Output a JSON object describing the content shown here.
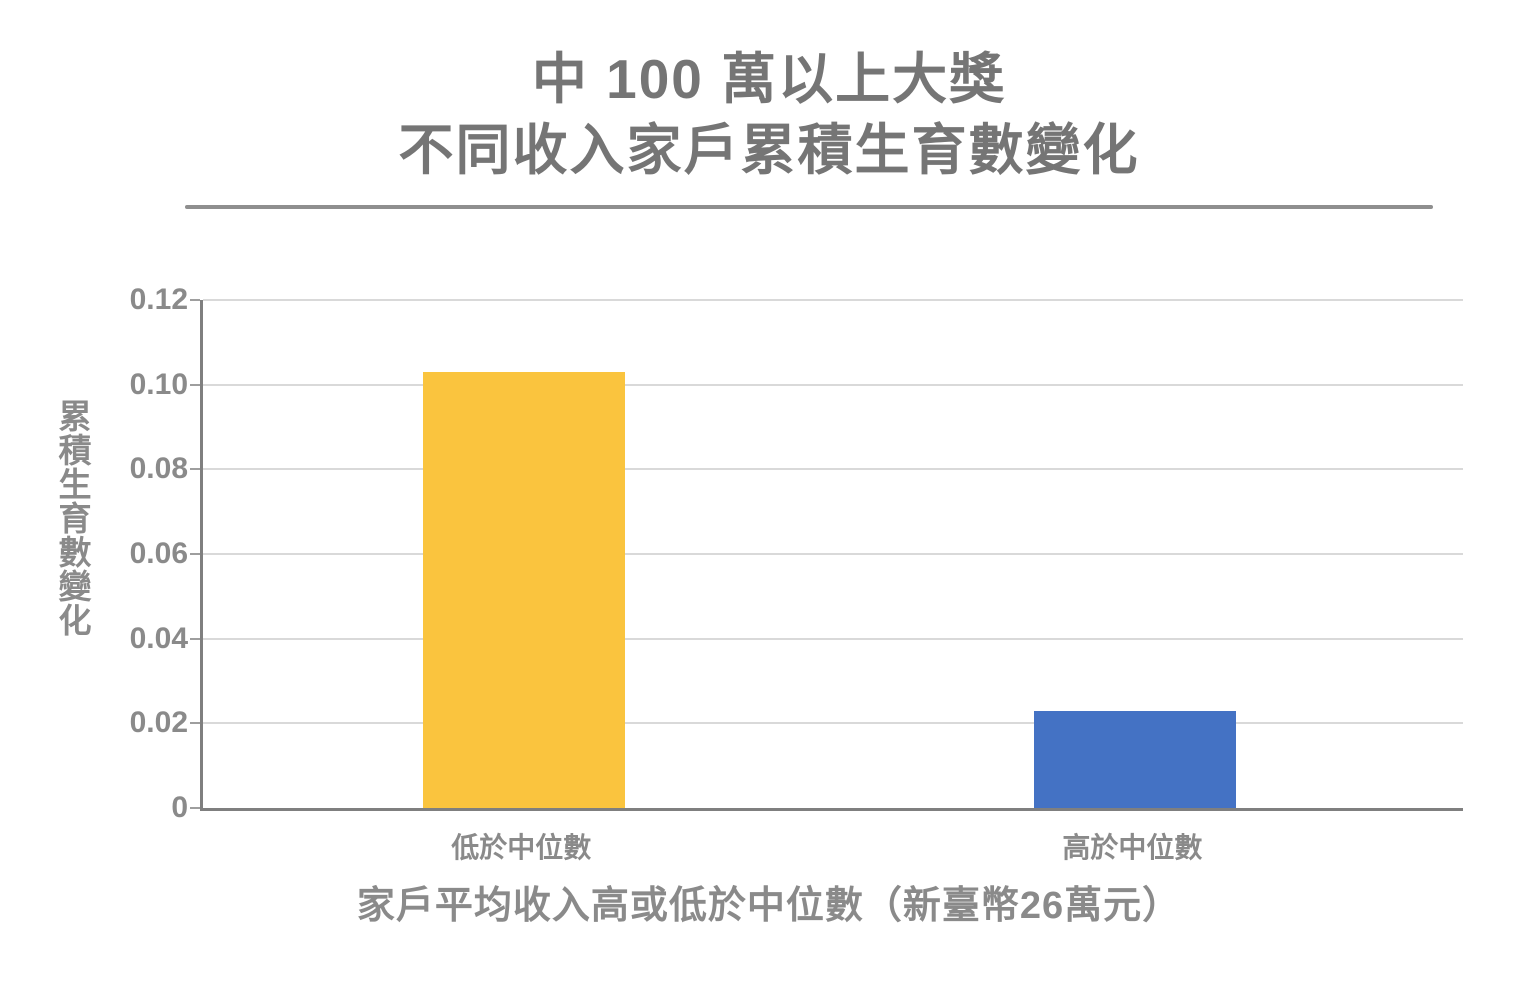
{
  "title": {
    "line1": "中 100 萬以上大獎",
    "line2": "不同收入家戶累積生育數變化"
  },
  "chart_data": {
    "type": "bar",
    "title": "中 100 萬以上大獎 不同收入家戶累積生育數變化",
    "categories": [
      "低於中位數",
      "高於中位數"
    ],
    "values": [
      0.103,
      0.023
    ],
    "xlabel": "家戶平均收入高或低於中位數（新臺幣26萬元）",
    "ylabel": "累積生育數變化",
    "ylim": [
      0,
      0.12
    ],
    "yticks": [
      0.12,
      0.1,
      0.08,
      0.06,
      0.04,
      0.02,
      0
    ],
    "ytick_labels": [
      "0.12",
      "0.10",
      "0.08",
      "0.06",
      "0.04",
      "0.02",
      "0"
    ],
    "bar_colors": [
      "#FAC43E",
      "#4472C4"
    ],
    "bar_center_fractions": [
      0.255,
      0.74
    ],
    "grid": true,
    "legend": false,
    "axis_color": "#7f7f7f",
    "gridline_color": "#d9d9d9",
    "text_color": "#8a8a8a",
    "title_color": "#757575"
  }
}
